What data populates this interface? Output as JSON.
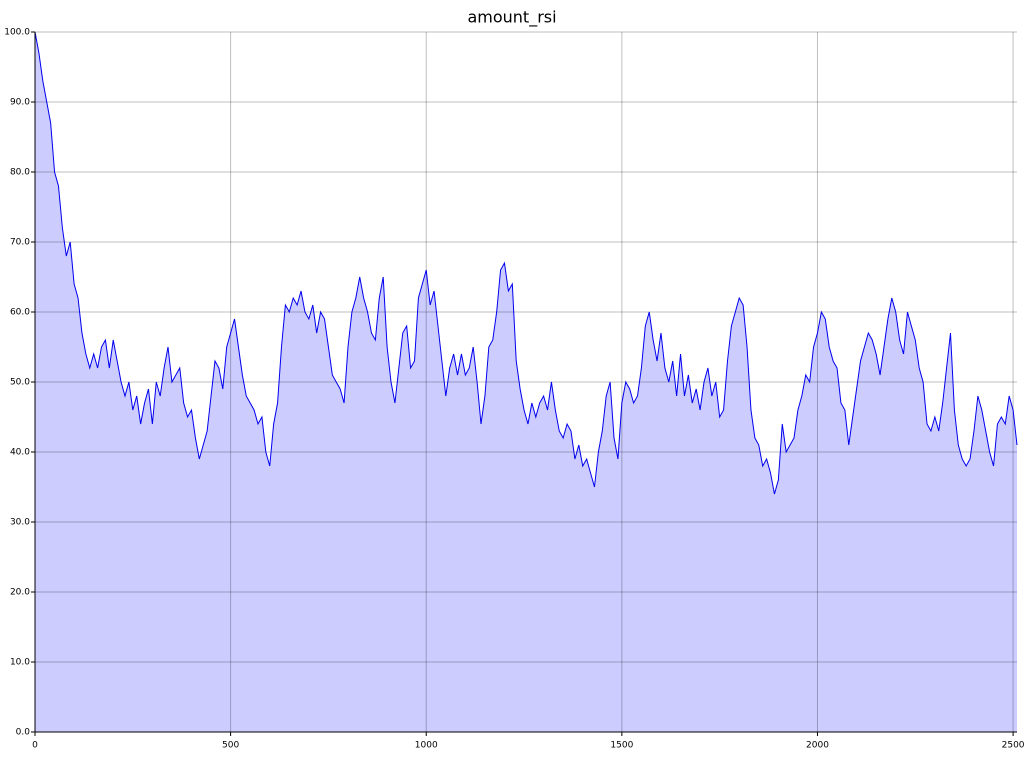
{
  "chart_data": {
    "type": "area",
    "title": "amount_rsi",
    "x": [
      0,
      10,
      20,
      30,
      40,
      50,
      60,
      70,
      80,
      90,
      100,
      110,
      120,
      130,
      140,
      150,
      160,
      170,
      180,
      190,
      200,
      210,
      220,
      230,
      240,
      250,
      260,
      270,
      280,
      290,
      300,
      310,
      320,
      330,
      340,
      350,
      360,
      370,
      380,
      390,
      400,
      410,
      420,
      430,
      440,
      450,
      460,
      470,
      480,
      490,
      500,
      510,
      520,
      530,
      540,
      550,
      560,
      570,
      580,
      590,
      600,
      610,
      620,
      630,
      640,
      650,
      660,
      670,
      680,
      690,
      700,
      710,
      720,
      730,
      740,
      750,
      760,
      770,
      780,
      790,
      800,
      810,
      820,
      830,
      840,
      850,
      860,
      870,
      880,
      890,
      900,
      910,
      920,
      930,
      940,
      950,
      960,
      970,
      980,
      990,
      1000,
      1010,
      1020,
      1030,
      1040,
      1050,
      1060,
      1070,
      1080,
      1090,
      1100,
      1110,
      1120,
      1130,
      1140,
      1150,
      1160,
      1170,
      1180,
      1190,
      1200,
      1210,
      1220,
      1230,
      1240,
      1250,
      1260,
      1270,
      1280,
      1290,
      1300,
      1310,
      1320,
      1330,
      1340,
      1350,
      1360,
      1370,
      1380,
      1390,
      1400,
      1410,
      1420,
      1430,
      1440,
      1450,
      1460,
      1470,
      1480,
      1490,
      1500,
      1510,
      1520,
      1530,
      1540,
      1550,
      1560,
      1570,
      1580,
      1590,
      1600,
      1610,
      1620,
      1630,
      1640,
      1650,
      1660,
      1670,
      1680,
      1690,
      1700,
      1710,
      1720,
      1730,
      1740,
      1750,
      1760,
      1770,
      1780,
      1790,
      1800,
      1810,
      1820,
      1830,
      1840,
      1850,
      1860,
      1870,
      1880,
      1890,
      1900,
      1910,
      1920,
      1930,
      1940,
      1950,
      1960,
      1970,
      1980,
      1990,
      2000,
      2010,
      2020,
      2030,
      2040,
      2050,
      2060,
      2070,
      2080,
      2090,
      2100,
      2110,
      2120,
      2130,
      2140,
      2150,
      2160,
      2170,
      2180,
      2190,
      2200,
      2210,
      2220,
      2230,
      2240,
      2250,
      2260,
      2270,
      2280,
      2290,
      2300,
      2310,
      2320,
      2330,
      2340,
      2350,
      2360,
      2370,
      2380,
      2390,
      2400,
      2410,
      2420,
      2430,
      2440,
      2450,
      2460,
      2470,
      2480,
      2490,
      2500,
      2510
    ],
    "values": [
      100,
      97,
      93,
      90,
      87,
      80,
      78,
      72,
      68,
      70,
      64,
      62,
      57,
      54,
      52,
      54,
      52,
      55,
      56,
      52,
      56,
      53,
      50,
      48,
      50,
      46,
      48,
      44,
      47,
      49,
      44,
      50,
      48,
      52,
      55,
      50,
      51,
      52,
      47,
      45,
      46,
      42,
      39,
      41,
      43,
      48,
      53,
      52,
      49,
      55,
      57,
      59,
      55,
      51,
      48,
      47,
      46,
      44,
      45,
      40,
      38,
      44,
      47,
      55,
      61,
      60,
      62,
      61,
      63,
      60,
      59,
      61,
      57,
      60,
      59,
      55,
      51,
      50,
      49,
      47,
      55,
      60,
      62,
      65,
      62,
      60,
      57,
      56,
      62,
      65,
      55,
      50,
      47,
      52,
      57,
      58,
      52,
      53,
      62,
      64,
      66,
      61,
      63,
      58,
      53,
      48,
      52,
      54,
      51,
      54,
      51,
      52,
      55,
      50,
      44,
      48,
      55,
      56,
      60,
      66,
      67,
      63,
      64,
      53,
      49,
      46,
      44,
      47,
      45,
      47,
      48,
      46,
      50,
      46,
      43,
      42,
      44,
      43,
      39,
      41,
      38,
      39,
      37,
      35,
      40,
      43,
      48,
      50,
      42,
      39,
      47,
      50,
      49,
      47,
      48,
      52,
      58,
      60,
      56,
      53,
      57,
      52,
      50,
      53,
      48,
      54,
      48,
      51,
      47,
      49,
      46,
      50,
      52,
      48,
      50,
      45,
      46,
      53,
      58,
      60,
      62,
      61,
      55,
      46,
      42,
      41,
      38,
      39,
      37,
      34,
      36,
      44,
      40,
      41,
      42,
      46,
      48,
      51,
      50,
      55,
      57,
      60,
      59,
      55,
      53,
      52,
      47,
      46,
      41,
      45,
      49,
      53,
      55,
      57,
      56,
      54,
      51,
      55,
      59,
      62,
      60,
      56,
      54,
      60,
      58,
      56,
      52,
      50,
      44,
      43,
      45,
      43,
      47,
      52,
      57,
      46,
      41,
      39,
      38,
      39,
      43,
      48,
      46,
      43,
      40,
      38,
      44,
      45,
      44,
      48,
      46,
      41
    ],
    "color": "#0000ee",
    "fill": "#ccccff",
    "xlim": [
      0,
      2510
    ],
    "ylim": [
      0,
      100
    ],
    "xticks": [
      0,
      500,
      1000,
      1500,
      2000,
      2500
    ],
    "yticks": [
      {
        "value": 0,
        "label": "0.0"
      },
      {
        "value": 10,
        "label": "10.0"
      },
      {
        "value": 20,
        "label": "20.0"
      },
      {
        "value": 30,
        "label": "30.0"
      },
      {
        "value": 40,
        "label": "40.0"
      },
      {
        "value": 50,
        "label": "50.0"
      },
      {
        "value": 60,
        "label": "60.0"
      },
      {
        "value": 70,
        "label": "70.0"
      },
      {
        "value": 80,
        "label": "80.0"
      },
      {
        "value": 90,
        "label": "90.0"
      },
      {
        "value": 100,
        "label": "100.0"
      }
    ],
    "grid": true
  }
}
